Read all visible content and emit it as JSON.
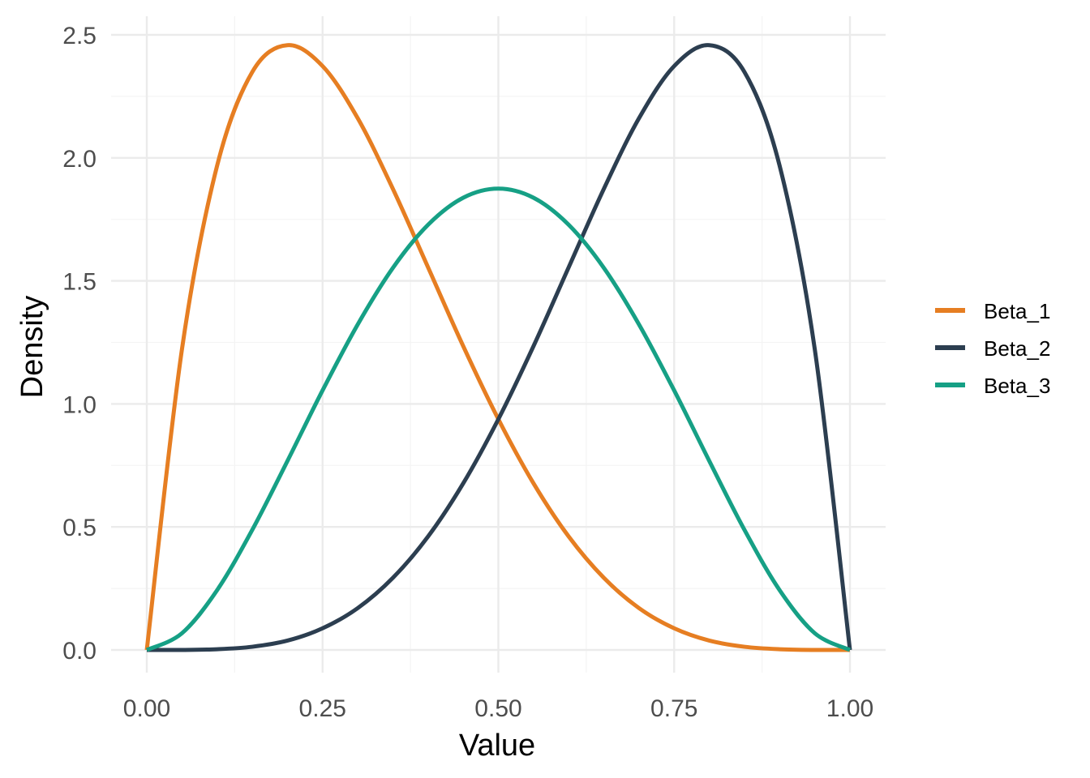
{
  "chart_data": {
    "type": "line",
    "title": "",
    "xlabel": "Value",
    "ylabel": "Density",
    "xlim": [
      0,
      1
    ],
    "ylim": [
      0,
      2.5
    ],
    "grid": true,
    "legend_placement": "right",
    "x_ticks": [
      "0.00",
      "0.25",
      "0.50",
      "0.75",
      "1.00"
    ],
    "y_ticks": [
      "0.0",
      "0.5",
      "1.0",
      "1.5",
      "2.0",
      "2.5"
    ],
    "x": [
      0,
      0.05,
      0.1,
      0.15,
      0.2,
      0.25,
      0.3,
      0.35,
      0.4,
      0.45,
      0.5,
      0.55,
      0.6,
      0.65,
      0.7,
      0.75,
      0.8,
      0.85,
      0.9,
      0.95,
      1
    ],
    "series": [
      {
        "name": "Beta_1",
        "color": "#E67E22",
        "values": [
          0,
          1.222,
          1.968,
          2.349,
          2.458,
          2.373,
          2.161,
          1.874,
          1.555,
          1.235,
          0.938,
          0.677,
          0.461,
          0.293,
          0.17,
          0.088,
          0.038,
          0.013,
          0.003,
          0.0,
          0
        ]
      },
      {
        "name": "Beta_2",
        "color": "#2C3E50",
        "values": [
          0,
          0.0,
          0.003,
          0.013,
          0.038,
          0.088,
          0.17,
          0.293,
          0.461,
          0.677,
          0.938,
          1.235,
          1.555,
          1.874,
          2.161,
          2.373,
          2.458,
          2.349,
          1.968,
          1.222,
          0
        ]
      },
      {
        "name": "Beta_3",
        "color": "#16A085",
        "values": [
          0,
          0.068,
          0.243,
          0.488,
          0.768,
          1.055,
          1.323,
          1.553,
          1.728,
          1.838,
          1.875,
          1.838,
          1.728,
          1.553,
          1.323,
          1.055,
          0.768,
          0.488,
          0.243,
          0.068,
          0
        ]
      }
    ]
  }
}
